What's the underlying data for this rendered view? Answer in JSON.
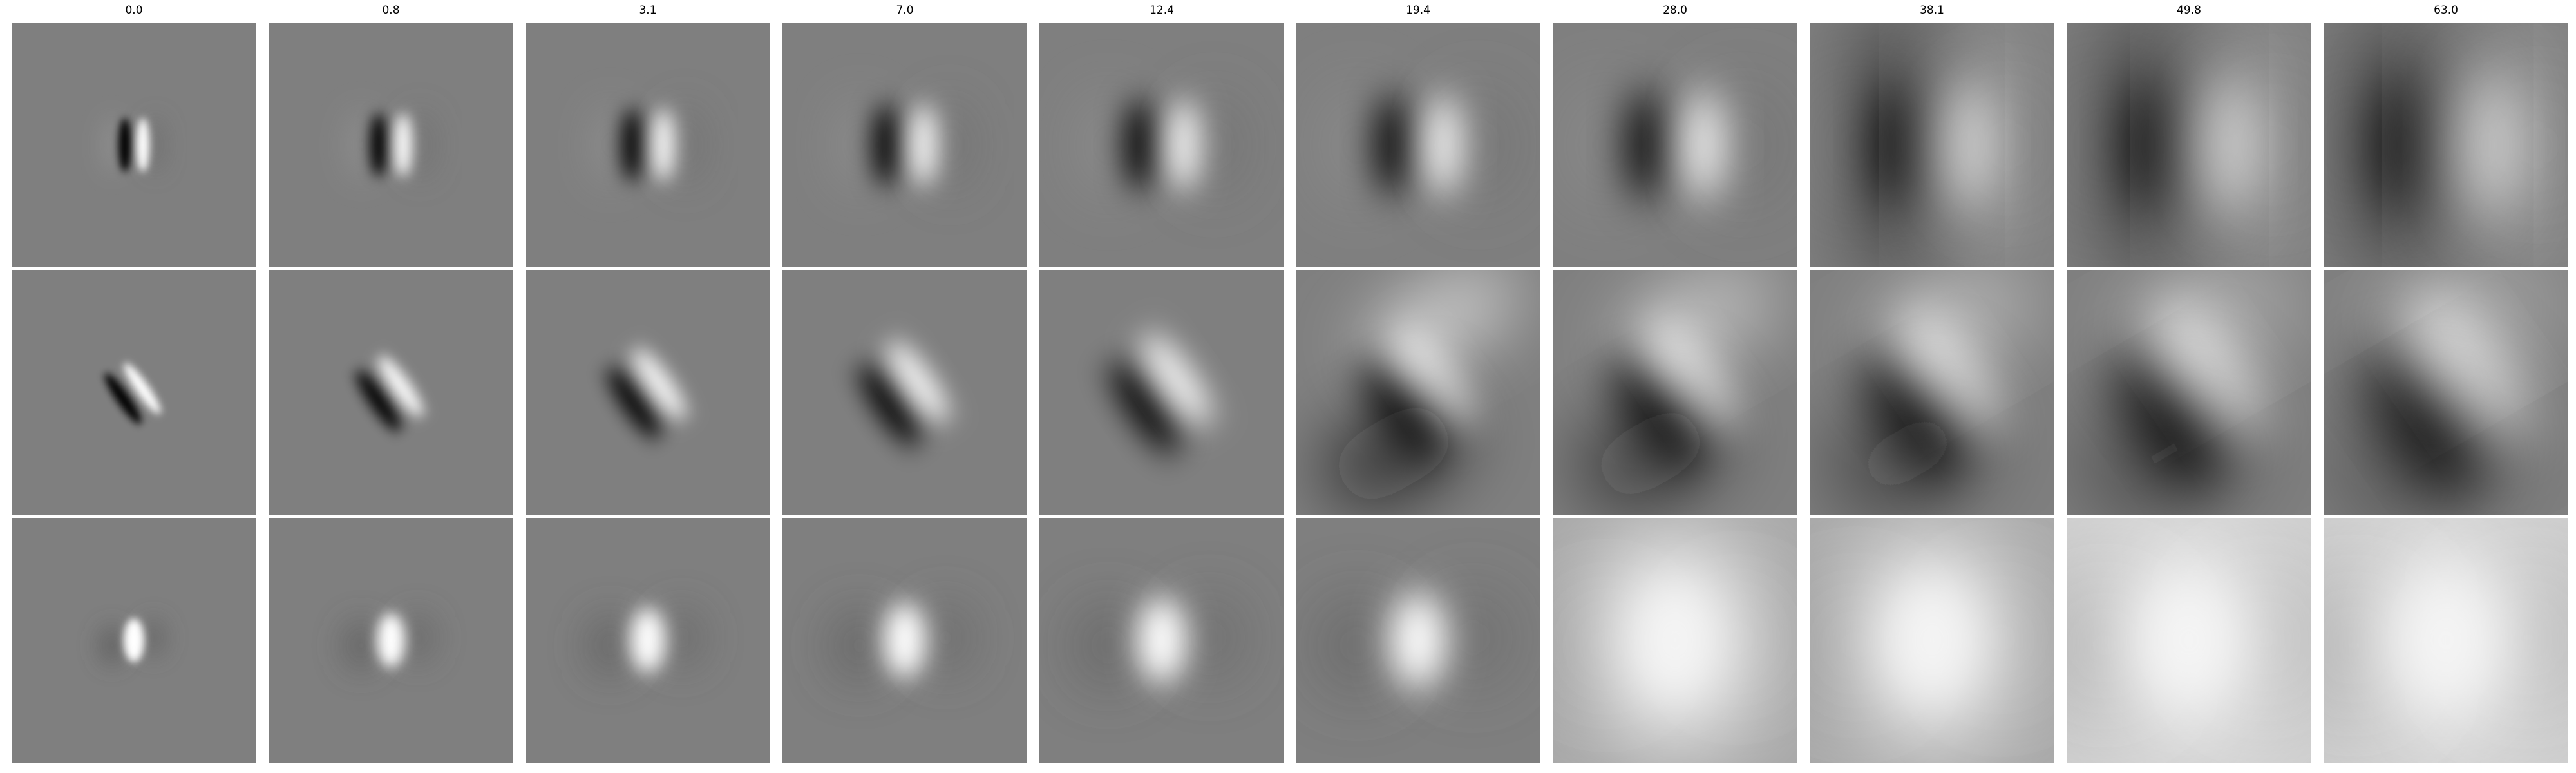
{
  "figure": {
    "column_titles": [
      "0.0",
      "0.8",
      "3.1",
      "7.0",
      "12.4",
      "19.4",
      "28.0",
      "38.1",
      "49.8",
      "63.0"
    ],
    "rows": 3,
    "colormap": "grayscale"
  }
}
